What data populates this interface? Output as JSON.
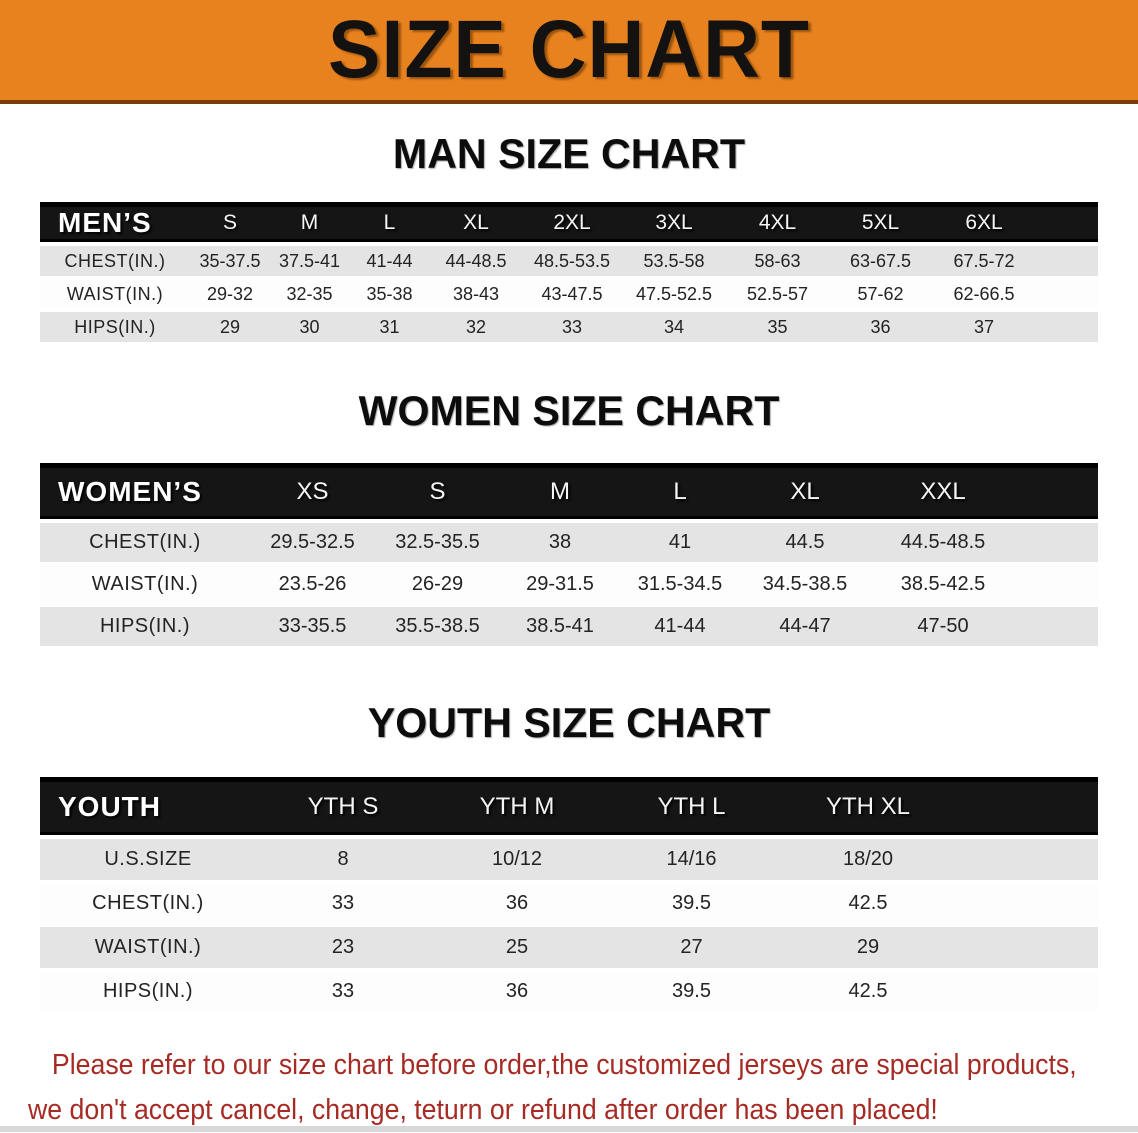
{
  "banner": {
    "title": "SIZE CHART"
  },
  "sections": [
    {
      "heading": "MAN SIZE CHART",
      "table": {
        "header_label": "MEN’S",
        "columns": [
          "S",
          "M",
          "L",
          "XL",
          "2XL",
          "3XL",
          "4XL",
          "5XL",
          "6XL"
        ],
        "rows": [
          {
            "label": "CHEST(IN.)",
            "values": [
              "35-37.5",
              "37.5-41",
              "41-44",
              "44-48.5",
              "48.5-53.5",
              "53.5-58",
              "58-63",
              "63-67.5",
              "67.5-72"
            ]
          },
          {
            "label": "WAIST(IN.)",
            "values": [
              "29-32",
              "32-35",
              "35-38",
              "38-43",
              "43-47.5",
              "47.5-52.5",
              "52.5-57",
              "57-62",
              "62-66.5"
            ]
          },
          {
            "label": "HIPS(IN.)",
            "values": [
              "29",
              "30",
              "31",
              "32",
              "33",
              "34",
              "35",
              "36",
              "37"
            ]
          }
        ]
      }
    },
    {
      "heading": "WOMEN SIZE CHART",
      "table": {
        "header_label": "WOMEN’S",
        "columns": [
          "XS",
          "S",
          "M",
          "L",
          "XL",
          "XXL"
        ],
        "rows": [
          {
            "label": "CHEST(IN.)",
            "values": [
              "29.5-32.5",
              "32.5-35.5",
              "38",
              "41",
              "44.5",
              "44.5-48.5"
            ]
          },
          {
            "label": "WAIST(IN.)",
            "values": [
              "23.5-26",
              "26-29",
              "29-31.5",
              "31.5-34.5",
              "34.5-38.5",
              "38.5-42.5"
            ]
          },
          {
            "label": "HIPS(IN.)",
            "values": [
              "33-35.5",
              "35.5-38.5",
              "38.5-41",
              "41-44",
              "44-47",
              "47-50"
            ]
          }
        ]
      }
    },
    {
      "heading": "YOUTH SIZE CHART",
      "table": {
        "header_label": "YOUTH",
        "columns": [
          "YTH S",
          "YTH M",
          "YTH L",
          "YTH XL"
        ],
        "rows": [
          {
            "label": "U.S.SIZE",
            "values": [
              "8",
              "10/12",
              "14/16",
              "18/20"
            ]
          },
          {
            "label": "CHEST(IN.)",
            "values": [
              "33",
              "36",
              "39.5",
              "42.5"
            ]
          },
          {
            "label": "WAIST(IN.)",
            "values": [
              "23",
              "25",
              "27",
              "29"
            ]
          },
          {
            "label": "HIPS(IN.)",
            "values": [
              "33",
              "36",
              "39.5",
              "42.5"
            ]
          }
        ]
      }
    }
  ],
  "footer_note": {
    "line1": "Please refer to our size chart before order,the customized jerseys are special products,",
    "line2": "we don't accept cancel, change, teturn or refund after order has been placed!"
  },
  "colors": {
    "banner_bg": "#E8821E",
    "banner_edge": "#7B3D08",
    "header_bar": "#151515",
    "row_gray": "#E4E4E4",
    "note_red": "#A62B24",
    "text": "#232323"
  }
}
